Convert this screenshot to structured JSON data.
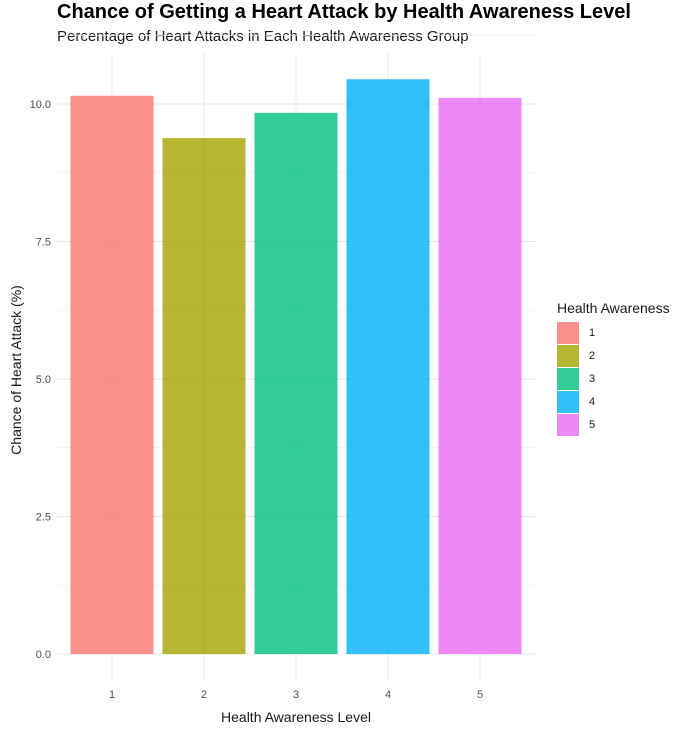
{
  "chart_data": {
    "type": "bar",
    "title": "Chance of Getting a Heart Attack by Health Awareness Level",
    "subtitle": "Percentage of Heart Attacks in Each Health Awareness Group",
    "xlabel": "Health Awareness Level",
    "ylabel": "Chance of Heart Attack (%)",
    "categories": [
      "1",
      "2",
      "3",
      "4",
      "5"
    ],
    "values": [
      10.15,
      9.38,
      9.84,
      10.45,
      10.11
    ],
    "colors": [
      "#F8766D",
      "#A3A500",
      "#00BF7D",
      "#00B0F6",
      "#E76BF3"
    ],
    "ylim": [
      0,
      10.7
    ],
    "yticks": [
      0.0,
      2.5,
      5.0,
      7.5,
      10.0
    ],
    "ytick_labels": [
      "0.0",
      "2.5",
      "5.0",
      "7.5",
      "10.0"
    ],
    "grid": true,
    "legend": {
      "title": "Health Awareness",
      "position": "right",
      "items": [
        "1",
        "2",
        "3",
        "4",
        "5"
      ]
    }
  }
}
